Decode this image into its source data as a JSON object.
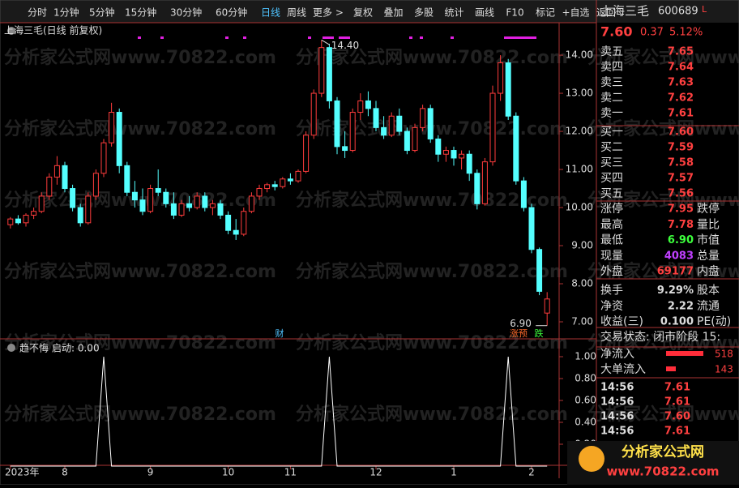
{
  "toolbar": {
    "periods": [
      "分时",
      "1分钟",
      "5分钟",
      "15分钟",
      "30分钟",
      "60分钟",
      "日线",
      "周线",
      "更多 >"
    ],
    "tools": [
      "复权",
      "叠加",
      "多股",
      "统计",
      "画线",
      "F10",
      "标记",
      "+自选",
      "返回"
    ]
  },
  "watermark": "分析家公式网www.70822.com",
  "main_chart": {
    "type": "candlestick",
    "title": "上海三毛(日线 前复权)",
    "ylim": [
      6.83,
      14.81
    ],
    "yticks": [
      {
        "value": 7,
        "label": "7.00"
      },
      {
        "value": 8,
        "label": "8.00"
      },
      {
        "value": 9,
        "label": "9.00"
      },
      {
        "value": 10,
        "label": "10.00"
      },
      {
        "value": 11,
        "label": "11.00"
      },
      {
        "value": 12,
        "label": "12.00"
      },
      {
        "value": 13,
        "label": "13.00"
      },
      {
        "value": 14,
        "label": "14.00"
      }
    ],
    "high_label": {
      "value": 14.4,
      "label": "14.40"
    },
    "low_label": {
      "value": 6.9,
      "label": "6.90"
    },
    "up_color": "#ff3c3c",
    "down_color": "#54ffff",
    "categories": [
      "2023年",
      null,
      null,
      null,
      null,
      null,
      null,
      "8",
      null,
      null,
      null,
      null,
      null,
      null,
      null,
      null,
      null,
      null,
      "9",
      null,
      null,
      null,
      null,
      null,
      null,
      null,
      null,
      null,
      "10",
      null,
      null,
      null,
      null,
      null,
      null,
      null,
      "11",
      null,
      null,
      null,
      null,
      null,
      null,
      null,
      null,
      null,
      null,
      "12",
      null,
      null,
      null,
      null,
      null,
      null,
      null,
      null,
      null,
      "1",
      null,
      null,
      null,
      null,
      null,
      null,
      null,
      null,
      null,
      "2",
      null,
      null
    ],
    "candles": [
      [
        9.55,
        9.75,
        9.45,
        9.7
      ],
      [
        9.7,
        9.8,
        9.55,
        9.6
      ],
      [
        9.6,
        9.85,
        9.5,
        9.8
      ],
      [
        9.8,
        10,
        9.7,
        9.9
      ],
      [
        9.9,
        10.4,
        9.85,
        10.3
      ],
      [
        10.3,
        10.9,
        10.2,
        10.8
      ],
      [
        10.8,
        11.35,
        10.6,
        11.1
      ],
      [
        11.1,
        11.2,
        10.4,
        10.5
      ],
      [
        10.5,
        10.6,
        9.9,
        10
      ],
      [
        10,
        10.1,
        9.5,
        9.6
      ],
      [
        9.6,
        10.4,
        9.55,
        10.3
      ],
      [
        10.3,
        11,
        10.2,
        10.9
      ],
      [
        10.9,
        11.8,
        10.8,
        11.7
      ],
      [
        11.7,
        12.75,
        11.6,
        12.5
      ],
      [
        12.5,
        12.6,
        10.9,
        11.1
      ],
      [
        11.1,
        11.2,
        10.3,
        10.4
      ],
      [
        10.4,
        10.7,
        10,
        10.2
      ],
      [
        10.2,
        10.5,
        9.8,
        9.9
      ],
      [
        9.9,
        10.6,
        9.85,
        10.5
      ],
      [
        10.5,
        11,
        10.3,
        10.4
      ],
      [
        10.4,
        10.5,
        10,
        10.1
      ],
      [
        10.1,
        10.4,
        9.7,
        9.8
      ],
      [
        9.8,
        10.2,
        9.75,
        10.1
      ],
      [
        10.1,
        10.3,
        9.9,
        10
      ],
      [
        10,
        10.4,
        9.95,
        10.3
      ],
      [
        10.3,
        10.4,
        9.9,
        10
      ],
      [
        10,
        10.2,
        9.8,
        10.1
      ],
      [
        10.1,
        10.2,
        9.7,
        9.8
      ],
      [
        9.8,
        9.9,
        9.3,
        9.4
      ],
      [
        9.4,
        9.7,
        9.15,
        9.3
      ],
      [
        9.3,
        10,
        9.25,
        9.9
      ],
      [
        9.9,
        10.4,
        9.85,
        10.3
      ],
      [
        10.3,
        10.6,
        10.2,
        10.5
      ],
      [
        10.5,
        10.65,
        10.4,
        10.6
      ],
      [
        10.6,
        10.7,
        10.45,
        10.55
      ],
      [
        10.55,
        10.8,
        10.5,
        10.75
      ],
      [
        10.75,
        10.9,
        10.6,
        10.7
      ],
      [
        10.7,
        11,
        10.65,
        10.95
      ],
      [
        10.95,
        12,
        10.9,
        11.9
      ],
      [
        11.9,
        13.1,
        11.8,
        13
      ],
      [
        13,
        14.4,
        12.9,
        14.2
      ],
      [
        14.2,
        14.3,
        12.6,
        12.8
      ],
      [
        12.8,
        12.9,
        11.4,
        11.6
      ],
      [
        11.6,
        12,
        11.3,
        11.5
      ],
      [
        11.5,
        12.6,
        11.45,
        12.5
      ],
      [
        12.5,
        13,
        12.3,
        12.8
      ],
      [
        12.8,
        13.05,
        12.4,
        12.6
      ],
      [
        12.6,
        12.8,
        12,
        12.1
      ],
      [
        12.1,
        12.4,
        11.8,
        11.9
      ],
      [
        11.9,
        12.5,
        11.85,
        12.4
      ],
      [
        12.4,
        12.6,
        11.9,
        12
      ],
      [
        12,
        12.1,
        11.4,
        11.5
      ],
      [
        11.5,
        12.2,
        11.45,
        12.1
      ],
      [
        12.1,
        12.7,
        12,
        12.6
      ],
      [
        12.6,
        12.7,
        11.7,
        11.8
      ],
      [
        11.8,
        11.9,
        11.2,
        11.4
      ],
      [
        11.4,
        11.6,
        11.2,
        11.5
      ],
      [
        11.5,
        11.6,
        11.1,
        11.3
      ],
      [
        11.3,
        11.5,
        11,
        11.4
      ],
      [
        11.4,
        11.5,
        10.7,
        10.9
      ],
      [
        10.9,
        11,
        9.95,
        10.1
      ],
      [
        10.1,
        11.3,
        10.05,
        11.2
      ],
      [
        11.2,
        13.2,
        11.1,
        13
      ],
      [
        13,
        14,
        12.8,
        13.8
      ],
      [
        13.8,
        13.9,
        12.3,
        12.4
      ],
      [
        12.4,
        12.5,
        10.6,
        10.7
      ],
      [
        10.7,
        10.8,
        9.9,
        10
      ],
      [
        10,
        10.1,
        8.8,
        8.9
      ],
      [
        8.9,
        8.95,
        7.7,
        7.8
      ],
      [
        7.23,
        7.78,
        6.9,
        7.6
      ]
    ],
    "markers": [
      "财",
      "涨预",
      "跌"
    ]
  },
  "indicator": {
    "type": "line",
    "title": "趋不悔",
    "param_label": "启动: 0.00",
    "color": "#ffffff",
    "ylim": [
      0,
      1.1
    ],
    "yticks": [
      {
        "value": 0.2,
        "label": "0.20"
      },
      {
        "value": 0.4,
        "label": "0.40"
      },
      {
        "value": 0.6,
        "label": "0.60"
      },
      {
        "value": 0.8,
        "label": "0.80"
      },
      {
        "value": 1,
        "label": "1.00"
      }
    ],
    "values": [
      0,
      0,
      0,
      0,
      0,
      0,
      0,
      0,
      0,
      0,
      0,
      0,
      1,
      0,
      0,
      0,
      0,
      0,
      0,
      0,
      0,
      0,
      0,
      0,
      0,
      0,
      0,
      0,
      0,
      0,
      0,
      0,
      0,
      0,
      0,
      0,
      0,
      0,
      0,
      0,
      0,
      1,
      0,
      0,
      0,
      0,
      0,
      0,
      0,
      0,
      0,
      0,
      0,
      0,
      0,
      0,
      0,
      0,
      0,
      0,
      0,
      0,
      0,
      0,
      1,
      0,
      0,
      0,
      0,
      0
    ]
  },
  "quote": {
    "name": "上海三毛",
    "code": "600689",
    "flag": "L",
    "price": "7.60",
    "change": "0.37",
    "pct": "5.12%"
  },
  "order_book": [
    [
      "卖五",
      "7.65"
    ],
    [
      "卖四",
      "7.64"
    ],
    [
      "卖三",
      "7.63"
    ],
    [
      "卖二",
      "7.62"
    ],
    [
      "卖一",
      "7.61"
    ],
    [
      "买一",
      "7.60"
    ],
    [
      "买二",
      "7.59"
    ],
    [
      "买三",
      "7.58"
    ],
    [
      "买四",
      "7.57"
    ],
    [
      "买五",
      "7.56"
    ]
  ],
  "stats": [
    [
      "涨停",
      "7.95",
      "跌停"
    ],
    [
      "最高",
      "7.78",
      "量比"
    ],
    [
      "最低",
      "6.90",
      "市值"
    ],
    [
      "现量",
      "4083",
      "总量"
    ],
    [
      "外盘",
      "69177",
      "内盘"
    ],
    [
      "换手",
      "9.29%",
      "股本"
    ],
    [
      "净资",
      "2.22",
      "流通"
    ],
    [
      "收益(三)",
      "0.100",
      "PE(动)"
    ]
  ],
  "status": "交易状态: 闭市阶段 15:",
  "flows": [
    [
      "净流入",
      "518"
    ],
    [
      "大单流入",
      "143"
    ]
  ],
  "trades": [
    [
      "14:56",
      "7.61"
    ],
    [
      "14:56",
      "7.61"
    ],
    [
      "14:56",
      "7.60"
    ],
    [
      "14:56",
      "7.61"
    ]
  ],
  "logo": {
    "name": "分析家公式网",
    "url": "www.70822.com"
  }
}
